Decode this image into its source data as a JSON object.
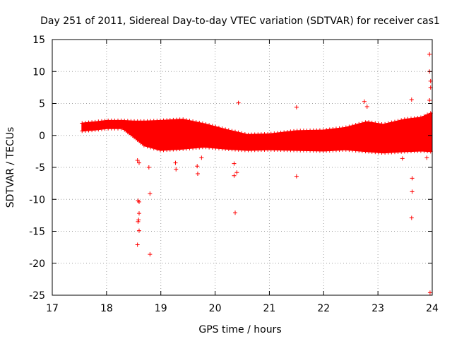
{
  "chart_data": {
    "type": "scatter",
    "title": "Day 251 of 2011, Sidereal Day-to-day VTEC variation (SDTVAR) for receiver cas1",
    "xlabel": "GPS time / hours",
    "ylabel": "SDTVAR / TECUs",
    "xlim": [
      17,
      24
    ],
    "ylim": [
      -25,
      15
    ],
    "xticks": [
      17,
      18,
      19,
      20,
      21,
      22,
      23,
      24
    ],
    "yticks": [
      15,
      10,
      5,
      0,
      -5,
      -10,
      -15,
      -20,
      -25
    ],
    "grid": true,
    "marker": "+",
    "color": "#ff0000",
    "series": [
      {
        "name": "cas1",
        "band_profile": [
          {
            "x": 17.55,
            "center": 1.3,
            "halfwidth": 0.6
          },
          {
            "x": 17.8,
            "center": 1.5,
            "halfwidth": 0.6
          },
          {
            "x": 18.0,
            "center": 1.7,
            "halfwidth": 0.6
          },
          {
            "x": 18.3,
            "center": 1.7,
            "halfwidth": 0.6
          },
          {
            "x": 18.5,
            "center": 1.0,
            "halfwidth": 1.2
          },
          {
            "x": 18.7,
            "center": 0.3,
            "halfwidth": 1.9
          },
          {
            "x": 19.0,
            "center": 0.0,
            "halfwidth": 2.3
          },
          {
            "x": 19.4,
            "center": 0.2,
            "halfwidth": 2.3
          },
          {
            "x": 19.8,
            "center": 0.0,
            "halfwidth": 1.8
          },
          {
            "x": 20.2,
            "center": -0.6,
            "halfwidth": 1.5
          },
          {
            "x": 20.6,
            "center": -1.1,
            "halfwidth": 1.2
          },
          {
            "x": 21.0,
            "center": -1.0,
            "halfwidth": 1.2
          },
          {
            "x": 21.5,
            "center": -0.8,
            "halfwidth": 1.5
          },
          {
            "x": 22.0,
            "center": -0.8,
            "halfwidth": 1.6
          },
          {
            "x": 22.4,
            "center": -0.5,
            "halfwidth": 1.7
          },
          {
            "x": 22.8,
            "center": -0.2,
            "halfwidth": 2.3
          },
          {
            "x": 23.1,
            "center": -0.5,
            "halfwidth": 2.2
          },
          {
            "x": 23.5,
            "center": 0.0,
            "halfwidth": 2.5
          },
          {
            "x": 23.8,
            "center": 0.2,
            "halfwidth": 2.6
          },
          {
            "x": 23.98,
            "center": 0.5,
            "halfwidth": 3.0
          }
        ],
        "outliers": [
          [
            18.57,
            -3.9
          ],
          [
            18.6,
            -4.3
          ],
          [
            18.58,
            -10.2
          ],
          [
            18.6,
            -10.4
          ],
          [
            18.6,
            -12.2
          ],
          [
            18.59,
            -13.2
          ],
          [
            18.58,
            -13.5
          ],
          [
            18.6,
            -14.9
          ],
          [
            18.57,
            -17.1
          ],
          [
            18.8,
            -9.1
          ],
          [
            18.8,
            -18.6
          ],
          [
            18.78,
            -5.0
          ],
          [
            19.27,
            -4.3
          ],
          [
            19.28,
            -5.3
          ],
          [
            19.67,
            -4.8
          ],
          [
            19.68,
            -6.0
          ],
          [
            19.75,
            -3.5
          ],
          [
            20.35,
            -4.4
          ],
          [
            20.35,
            -6.3
          ],
          [
            20.4,
            -5.8
          ],
          [
            20.37,
            -12.1
          ],
          [
            20.43,
            5.1
          ],
          [
            21.5,
            4.4
          ],
          [
            21.5,
            -6.4
          ],
          [
            22.75,
            5.3
          ],
          [
            22.8,
            4.5
          ],
          [
            23.45,
            -3.6
          ],
          [
            23.62,
            5.6
          ],
          [
            23.63,
            -6.7
          ],
          [
            23.63,
            -8.8
          ],
          [
            23.62,
            -12.9
          ],
          [
            23.95,
            12.7
          ],
          [
            23.95,
            10.0
          ],
          [
            23.97,
            8.5
          ],
          [
            23.97,
            7.5
          ],
          [
            23.95,
            5.5
          ],
          [
            23.96,
            -24.6
          ],
          [
            23.9,
            -3.5
          ]
        ]
      }
    ]
  }
}
